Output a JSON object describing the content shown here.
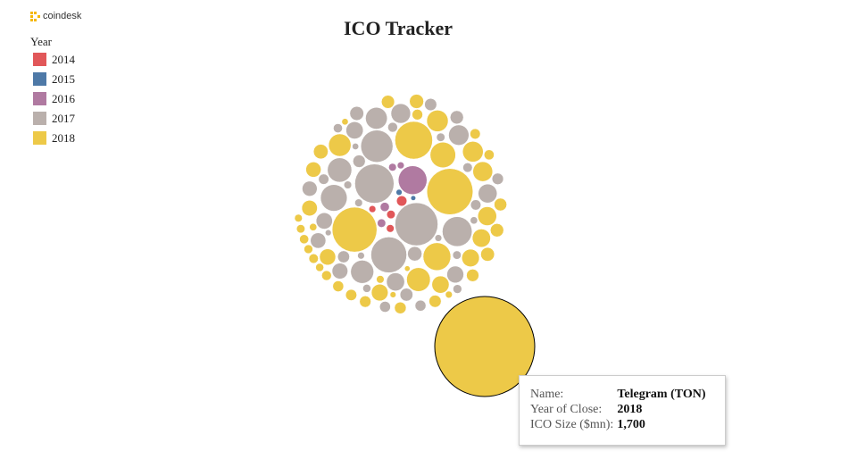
{
  "brand": "coindesk",
  "chart_data": {
    "type": "packed-bubble",
    "title": "ICO Tracker",
    "legend_title": "Year",
    "series": [
      {
        "name": "2014",
        "color": "#e15759",
        "values": [
          18,
          12,
          10,
          8
        ]
      },
      {
        "name": "2015",
        "color": "#4e79a7",
        "values": [
          6,
          4
        ]
      },
      {
        "name": "2016",
        "color": "#b07aa1",
        "values": [
          139,
          14,
          12,
          10,
          8
        ]
      },
      {
        "name": "2017",
        "color": "#bab0ac",
        "values": [
          312,
          260,
          217,
          175,
          150,
          120,
          100,
          90,
          80,
          70,
          65,
          60,
          55,
          50,
          48,
          45,
          42,
          40,
          38,
          35,
          33,
          30,
          28,
          26,
          25,
          24,
          22,
          20,
          20,
          18,
          18,
          16,
          15,
          14,
          13,
          12,
          12,
          11,
          10,
          10,
          9,
          8,
          8,
          7,
          6
        ]
      },
      {
        "name": "2018",
        "color": "#edc948",
        "values": [
          1700,
          360,
          340,
          240,
          130,
          110,
          95,
          85,
          78,
          72,
          66,
          60,
          56,
          52,
          50,
          47,
          44,
          41,
          39,
          36,
          34,
          32,
          30,
          29,
          27,
          26,
          25,
          23,
          22,
          21,
          20,
          19,
          18,
          17,
          16,
          15,
          14,
          13,
          12,
          11,
          10,
          10,
          9,
          8,
          7,
          6,
          5
        ]
      }
    ],
    "tooltip": {
      "labels": [
        "Name:",
        "Year of Close:",
        "ICO Size ($mn):"
      ],
      "name": "Telegram (TON)",
      "year": 2018,
      "size": {
        "value": 1700,
        "label": "1,700"
      }
    }
  }
}
